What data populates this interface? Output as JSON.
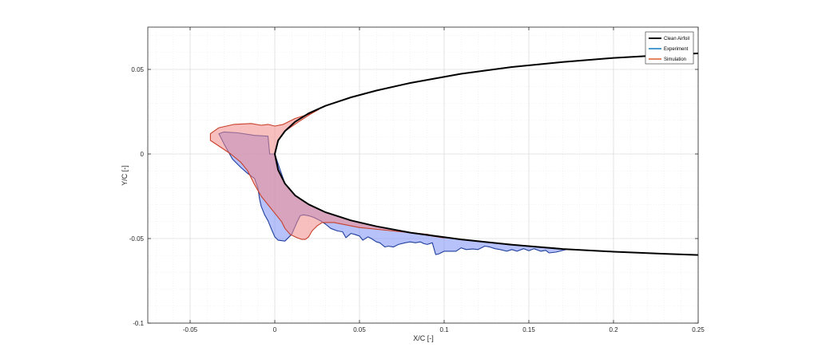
{
  "chart_data": {
    "type": "area",
    "title": "",
    "xlabel": "X/C [-]",
    "ylabel": "Y/C [-]",
    "xlim": [
      -0.075,
      0.25
    ],
    "ylim": [
      -0.1,
      0.075
    ],
    "x_ticks": [
      -0.05,
      0,
      0.05,
      0.1,
      0.15,
      0.2,
      0.25
    ],
    "x_tick_labels": [
      "-0.05",
      "0",
      "0.05",
      "0.1",
      "0.15",
      "0.2",
      "0.25"
    ],
    "y_ticks": [
      -0.1,
      -0.05,
      0,
      0.05
    ],
    "y_tick_labels": [
      "-0.1",
      "-0.05",
      "0",
      "0.05"
    ],
    "grid": "major-and-minor, dotted",
    "legend_position": "top-right",
    "colors": {
      "clean": "#000000",
      "experiment_edge": "#1f3f9c",
      "experiment_fill": "#7e8ff5",
      "simulation_edge": "#c8402a",
      "simulation_fill": "#f28b8b",
      "legend_experiment": "#0072bd",
      "legend_simulation": "#d95319"
    },
    "series": [
      {
        "name": "Clean Airfoil",
        "kind": "line",
        "x": [
          0.25,
          0.23,
          0.2,
          0.17,
          0.14,
          0.11,
          0.08,
          0.06,
          0.045,
          0.03,
          0.02,
          0.012,
          0.006,
          0.002,
          0,
          0.002,
          0.006,
          0.012,
          0.02,
          0.03,
          0.045,
          0.06,
          0.08,
          0.11,
          0.14,
          0.17,
          0.2,
          0.23,
          0.25
        ],
        "y": [
          0.0595,
          0.0585,
          0.0568,
          0.0544,
          0.0514,
          0.0474,
          0.042,
          0.0375,
          0.0335,
          0.0285,
          0.024,
          0.019,
          0.0135,
          0.008,
          0,
          -0.0095,
          -0.0175,
          -0.0245,
          -0.0298,
          -0.0345,
          -0.0393,
          -0.0428,
          -0.0465,
          -0.0505,
          -0.0537,
          -0.0562,
          -0.0578,
          -0.059,
          -0.0597
        ]
      },
      {
        "name": "Experiment",
        "kind": "region",
        "x": [
          -0.033,
          -0.03,
          -0.022,
          -0.012,
          -0.004,
          -0.003,
          0,
          0.003,
          0.006,
          0.012,
          0.02,
          0.03,
          0.045,
          0.06,
          0.08,
          0.11,
          0.14,
          0.168,
          0.172,
          0.166,
          0.162,
          0.16,
          0.157,
          0.153,
          0.15,
          0.147,
          0.143,
          0.14,
          0.137,
          0.133,
          0.13,
          0.127,
          0.124,
          0.12,
          0.117,
          0.113,
          0.11,
          0.107,
          0.103,
          0.1,
          0.097,
          0.095,
          0.094,
          0.093,
          0.09,
          0.088,
          0.086,
          0.083,
          0.08,
          0.077,
          0.073,
          0.07,
          0.067,
          0.065,
          0.062,
          0.06,
          0.057,
          0.055,
          0.052,
          0.05,
          0.047,
          0.045,
          0.042,
          0.04,
          0.037,
          0.033,
          0.03,
          0.027,
          0.023,
          0.02,
          0.017,
          0.015,
          0.013,
          0.01,
          0.006,
          0.002,
          0,
          -0.002,
          -0.004,
          -0.006,
          -0.008,
          -0.009,
          -0.01,
          -0.012,
          -0.016,
          -0.02,
          -0.025,
          -0.03,
          -0.033
        ],
        "y": [
          0.012,
          0.013,
          0.0125,
          0.011,
          0.0105,
          0.0,
          0.0,
          -0.009,
          -0.0175,
          -0.0245,
          -0.0298,
          -0.0345,
          -0.0393,
          -0.0428,
          -0.0465,
          -0.0505,
          -0.0537,
          -0.0558,
          -0.0565,
          -0.058,
          -0.0585,
          -0.057,
          -0.0575,
          -0.056,
          -0.0572,
          -0.056,
          -0.0575,
          -0.0565,
          -0.0575,
          -0.0565,
          -0.056,
          -0.055,
          -0.0545,
          -0.0565,
          -0.0562,
          -0.0565,
          -0.0555,
          -0.0575,
          -0.0575,
          -0.0575,
          -0.059,
          -0.0595,
          -0.056,
          -0.0525,
          -0.0535,
          -0.053,
          -0.052,
          -0.0525,
          -0.052,
          -0.0525,
          -0.0535,
          -0.055,
          -0.0545,
          -0.055,
          -0.0525,
          -0.052,
          -0.05,
          -0.049,
          -0.051,
          -0.0485,
          -0.0475,
          -0.047,
          -0.0495,
          -0.046,
          -0.0455,
          -0.044,
          -0.0415,
          -0.0395,
          -0.0375,
          -0.0365,
          -0.036,
          -0.0365,
          -0.0405,
          -0.0475,
          -0.0515,
          -0.051,
          -0.049,
          -0.0445,
          -0.0395,
          -0.036,
          -0.031,
          -0.0265,
          -0.02,
          -0.0145,
          -0.0115,
          -0.008,
          -0.003,
          0.006,
          0.012
        ]
      },
      {
        "name": "Simulation",
        "kind": "region",
        "x": [
          -0.038,
          -0.033,
          -0.024,
          -0.014,
          -0.008,
          -0.004,
          0.0,
          0.005,
          0.012,
          0.02,
          0.026,
          0.021,
          0.014,
          0.006,
          0.002,
          0,
          0.002,
          0.006,
          0.012,
          0.02,
          0.03,
          0.045,
          0.06,
          0.08,
          0.1,
          0.09,
          0.07,
          0.05,
          0.035,
          0.028,
          0.025,
          0.022,
          0.02,
          0.018,
          0.016,
          0.013,
          0.009,
          0.006,
          0.004,
          0.0,
          -0.004,
          -0.008,
          -0.012,
          -0.016,
          -0.02,
          -0.026,
          -0.032,
          -0.038
        ],
        "y": [
          0.012,
          0.0155,
          0.0175,
          0.018,
          0.017,
          0.0175,
          0.0165,
          0.0175,
          0.021,
          0.0235,
          0.0263,
          0.0235,
          0.019,
          0.0135,
          0.008,
          0,
          -0.0095,
          -0.0175,
          -0.0245,
          -0.0298,
          -0.0345,
          -0.0393,
          -0.0428,
          -0.0465,
          -0.0496,
          -0.0475,
          -0.0455,
          -0.0435,
          -0.0405,
          -0.0405,
          -0.0425,
          -0.0455,
          -0.049,
          -0.0505,
          -0.0505,
          -0.0495,
          -0.0475,
          -0.044,
          -0.04,
          -0.035,
          -0.03,
          -0.025,
          -0.018,
          -0.01,
          -0.005,
          0.0,
          0.004,
          0.008
        ]
      }
    ]
  }
}
